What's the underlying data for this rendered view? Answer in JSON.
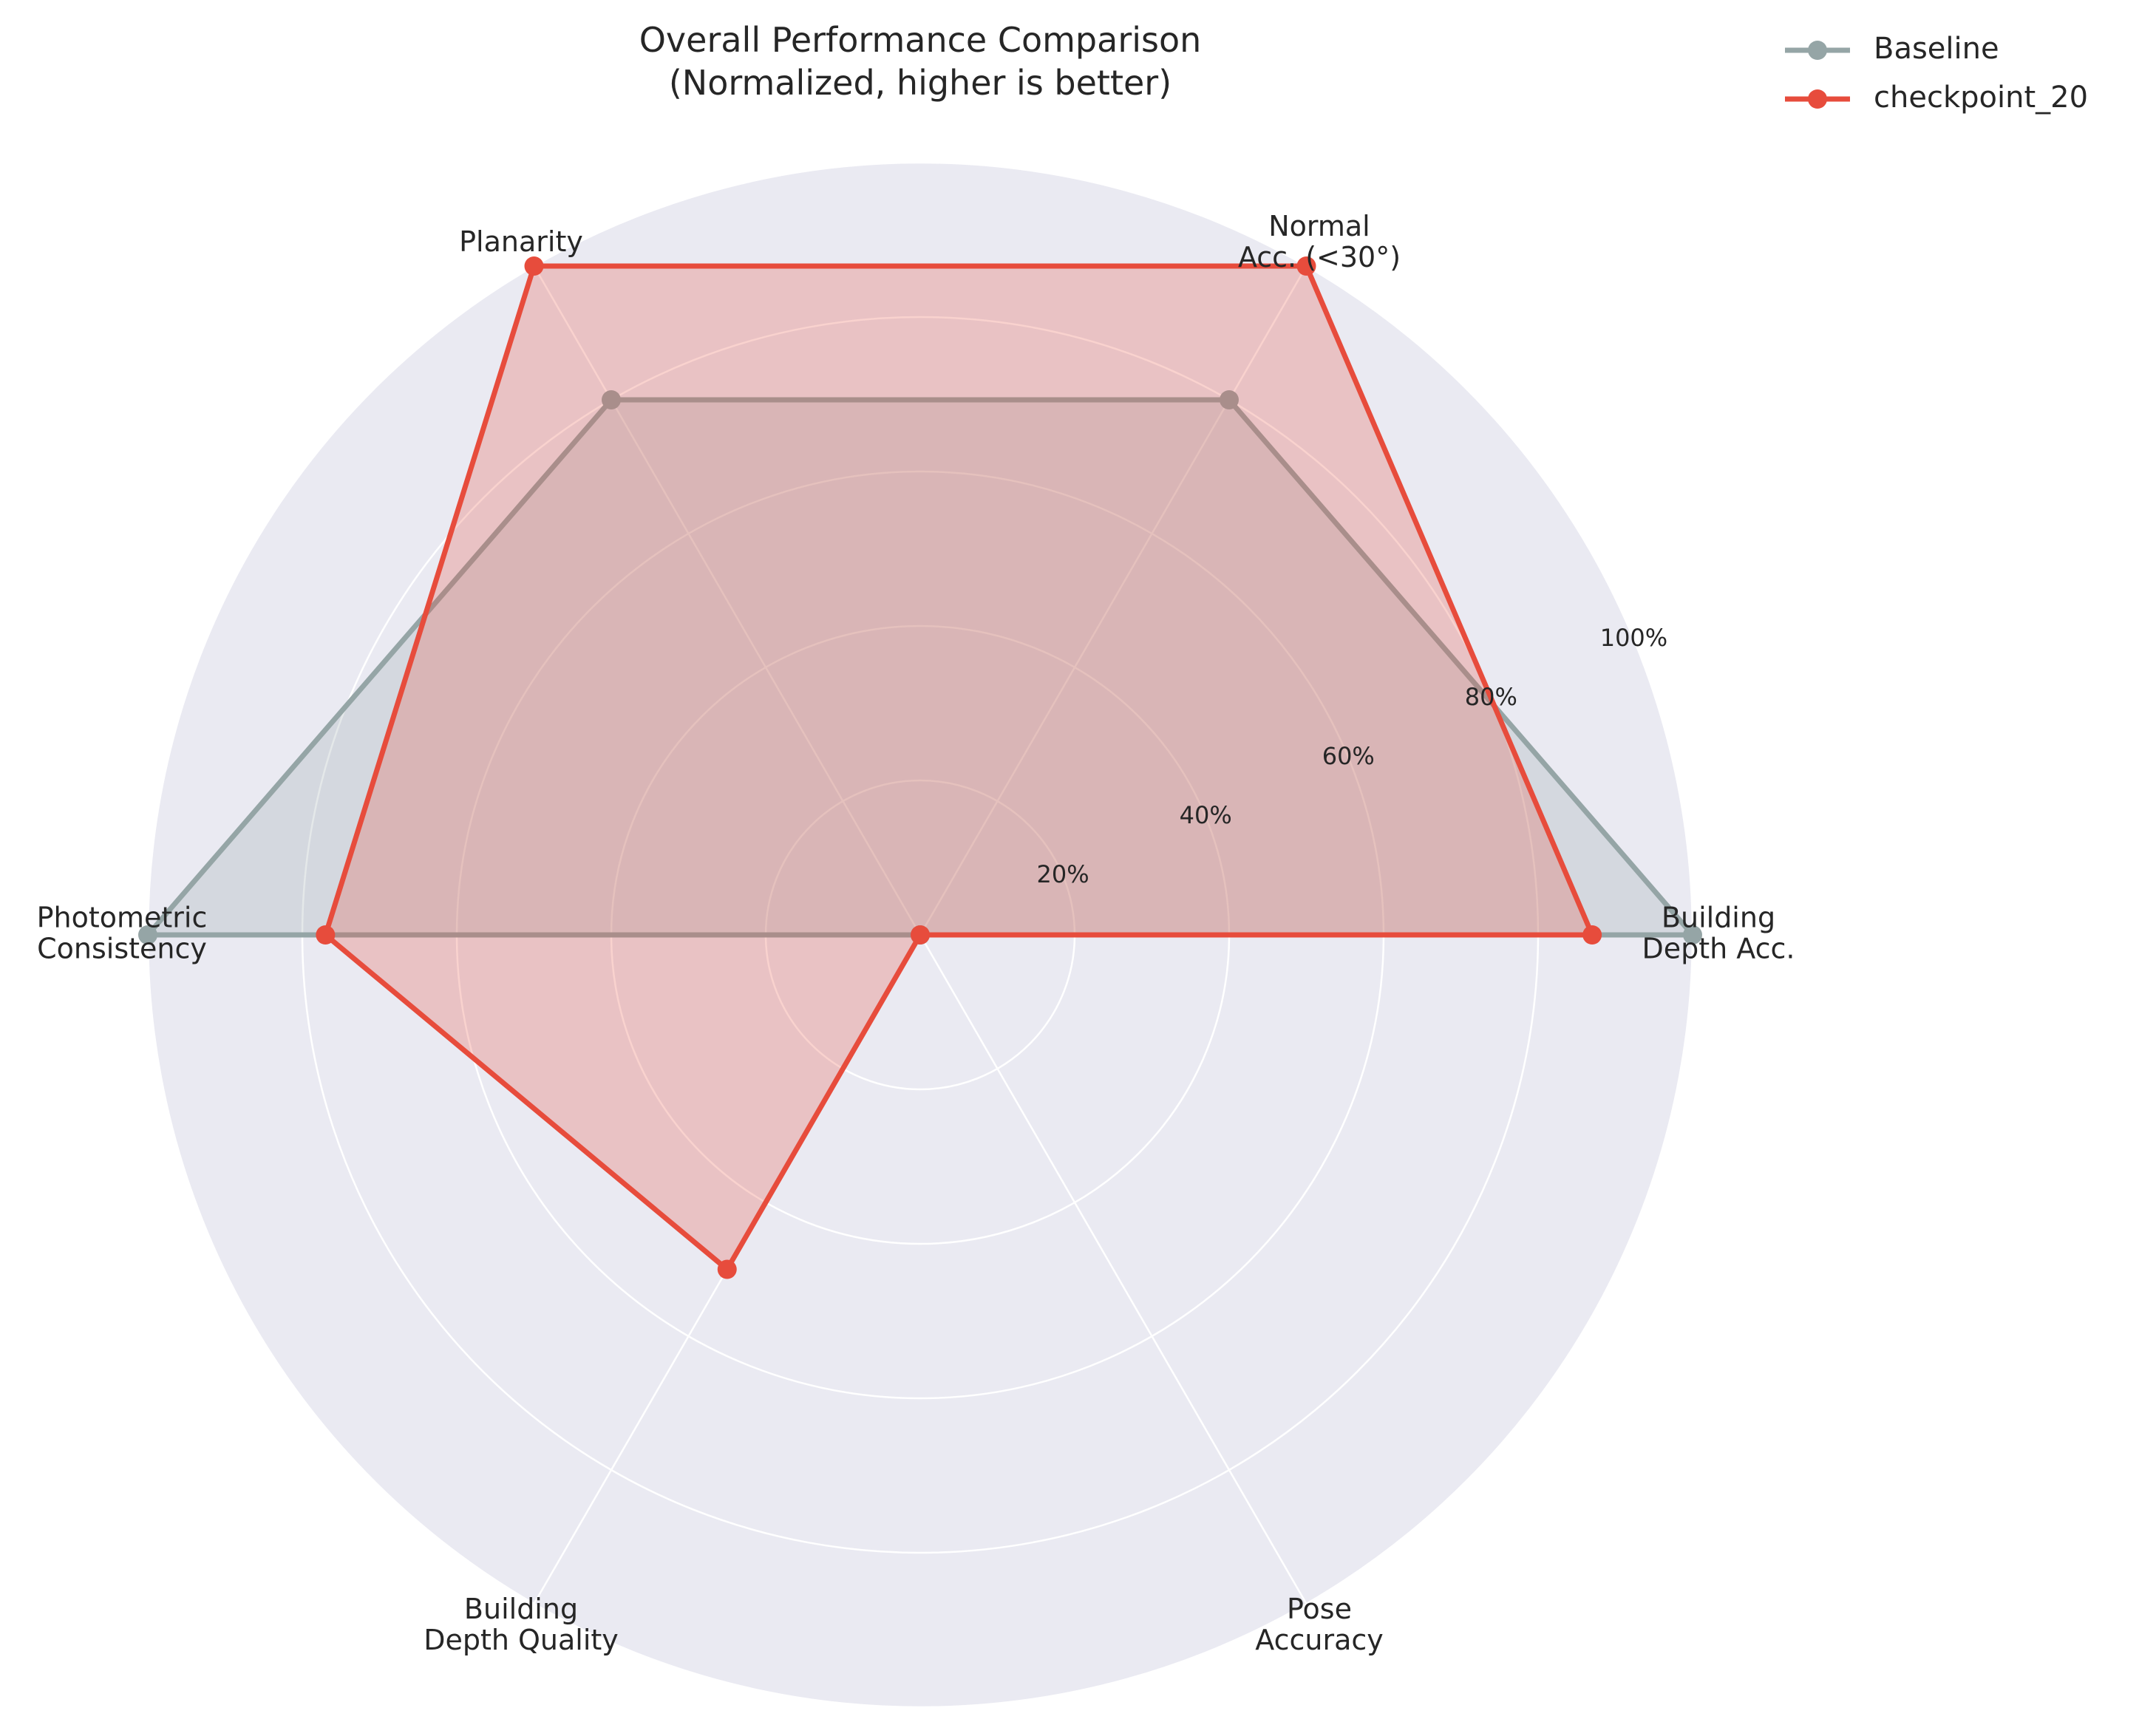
{
  "chart_data": {
    "type": "radar",
    "title": "Overall Performance Comparison",
    "subtitle": "(Normalized, higher is better)",
    "axes": [
      {
        "line1": "Building",
        "line2": "Depth Acc."
      },
      {
        "line1": "Normal",
        "line2": "Acc. (<30°)"
      },
      {
        "line1": "Planarity",
        "line2": ""
      },
      {
        "line1": "Photometric",
        "line2": "Consistency"
      },
      {
        "line1": "Building",
        "line2": "Depth Quality"
      },
      {
        "line1": "Pose",
        "line2": "Accuracy"
      }
    ],
    "rlim": [
      0,
      100
    ],
    "ticks": [
      20,
      40,
      60,
      80,
      100
    ],
    "tick_labels": [
      "20%",
      "40%",
      "60%",
      "80%",
      "100%"
    ],
    "grid": true,
    "legend_position": "top-right",
    "series": [
      {
        "name": "Baseline",
        "color": "#95a5a6",
        "values": [
          100,
          80,
          80,
          100,
          0,
          0
        ]
      },
      {
        "name": "checkpoint_20",
        "color": "#e74c3c",
        "values": [
          87,
          100,
          100,
          77,
          50,
          0
        ]
      }
    ]
  },
  "colors": {
    "plot_background": "#eaeaf2",
    "grid": "#ffffff",
    "text": "#262626"
  }
}
